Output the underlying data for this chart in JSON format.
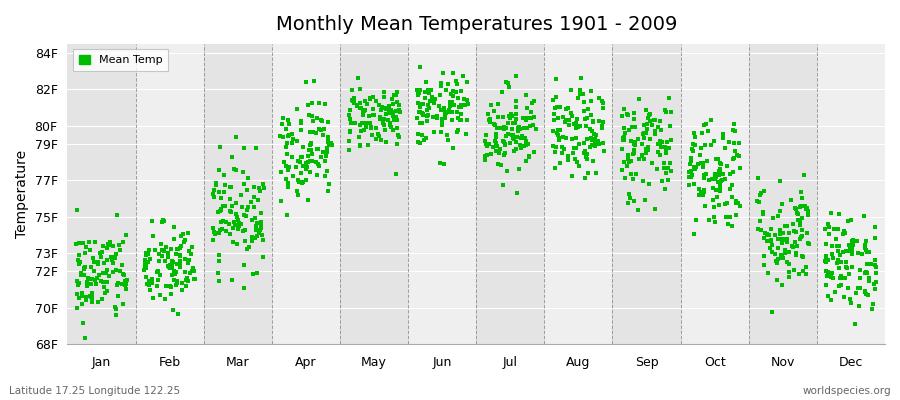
{
  "title": "Monthly Mean Temperatures 1901 - 2009",
  "ylabel": "Temperature",
  "dot_color": "#00BB00",
  "background_color": "#ffffff",
  "plot_bg_light": "#efefef",
  "plot_bg_dark": "#e4e4e4",
  "yticks": [
    68,
    70,
    72,
    73,
    75,
    77,
    79,
    80,
    82,
    84
  ],
  "ytick_labels": [
    "68F",
    "70F",
    "72F",
    "73F",
    "75F",
    "77F",
    "79F",
    "80F",
    "82F",
    "84F"
  ],
  "ylim": [
    68,
    84.5
  ],
  "months": [
    "Jan",
    "Feb",
    "Mar",
    "Apr",
    "May",
    "Jun",
    "Jul",
    "Aug",
    "Sep",
    "Oct",
    "Nov",
    "Dec"
  ],
  "legend_label": "Mean Temp",
  "footnote_left": "Latitude 17.25 Longitude 122.25",
  "footnote_right": "worldspecies.org",
  "month_mean_temps": [
    71.8,
    72.2,
    75.2,
    78.8,
    80.5,
    80.8,
    79.8,
    79.5,
    78.8,
    77.5,
    74.0,
    72.5
  ],
  "month_std_temps": [
    1.3,
    1.2,
    1.5,
    1.4,
    0.9,
    1.0,
    1.2,
    1.2,
    1.5,
    1.6,
    1.5,
    1.3
  ],
  "n_years": 109,
  "seed": 42,
  "xlim_start": -0.5,
  "xlim_end": 12.5,
  "month_x_positions": [
    0,
    1,
    2,
    3,
    4,
    5,
    6,
    7,
    8,
    9,
    10,
    11
  ],
  "vline_positions": [
    0.5,
    1.5,
    2.5,
    3.5,
    4.5,
    5.5,
    6.5,
    7.5,
    8.5,
    9.5,
    10.5,
    11.5
  ]
}
